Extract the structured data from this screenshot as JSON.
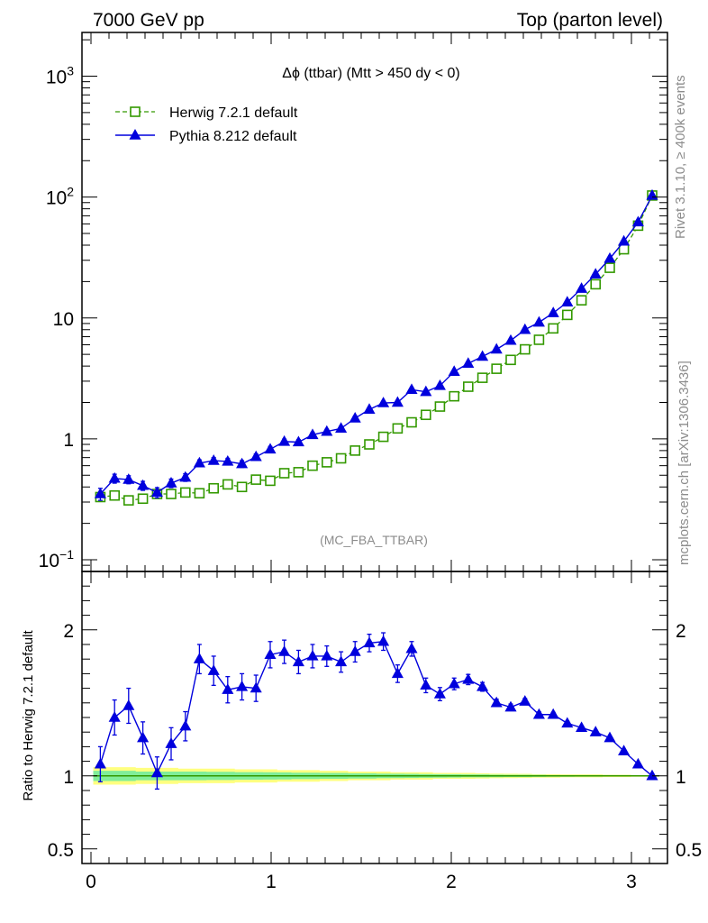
{
  "header": {
    "left": "7000 GeV pp",
    "right": "Top (parton level)"
  },
  "side_labels": {
    "rivet": "Rivet 3.1.10, ≥ 400k events",
    "mcplots": "mcplots.cern.ch [arXiv:1306.3436]"
  },
  "plot_title": "Δϕ (ttbar) (Mtt > 450 dy < 0)",
  "watermark": "(MC_FBA_TTBAR)",
  "ratio_ylabel": "Ratio to Herwig 7.2.1 default",
  "colors": {
    "herwig": "#339900",
    "pythia": "#0000dd",
    "band_outer": "#ffff80",
    "band_inner": "#80ee99"
  },
  "chart_data": [
    {
      "type": "line",
      "yscale": "log",
      "xlim": [
        -0.05,
        3.2
      ],
      "ylim": [
        0.08,
        2300
      ],
      "x": [
        0.052,
        0.131,
        0.209,
        0.288,
        0.367,
        0.445,
        0.524,
        0.602,
        0.681,
        0.759,
        0.838,
        0.916,
        0.995,
        1.073,
        1.152,
        1.23,
        1.309,
        1.388,
        1.466,
        1.545,
        1.623,
        1.702,
        1.78,
        1.859,
        1.937,
        2.016,
        2.094,
        2.173,
        2.251,
        2.33,
        2.409,
        2.487,
        2.566,
        2.644,
        2.723,
        2.801,
        2.88,
        2.958,
        3.037,
        3.115
      ],
      "series": [
        {
          "name": "Herwig 7.2.1 default",
          "marker": "open-square",
          "line": "dashed",
          "values": [
            0.33,
            0.34,
            0.31,
            0.32,
            0.35,
            0.35,
            0.36,
            0.355,
            0.39,
            0.42,
            0.4,
            0.46,
            0.45,
            0.52,
            0.53,
            0.6,
            0.64,
            0.69,
            0.8,
            0.9,
            1.04,
            1.22,
            1.37,
            1.58,
            1.85,
            2.25,
            2.7,
            3.2,
            3.8,
            4.5,
            5.5,
            6.6,
            8.2,
            10.6,
            14.0,
            19.0,
            26.0,
            37.0,
            58.0,
            103.0
          ]
        },
        {
          "name": "Pythia 8.212 default",
          "marker": "filled-triangle",
          "line": "solid",
          "values": [
            0.35,
            0.47,
            0.46,
            0.41,
            0.36,
            0.43,
            0.48,
            0.63,
            0.66,
            0.65,
            0.62,
            0.71,
            0.82,
            0.95,
            0.94,
            1.08,
            1.15,
            1.22,
            1.48,
            1.75,
            1.98,
            2.0,
            2.55,
            2.45,
            2.75,
            3.6,
            4.2,
            4.8,
            5.5,
            6.5,
            8.0,
            9.2,
            11.0,
            13.5,
            17.5,
            23.0,
            31.0,
            43.0,
            62.0,
            103.0
          ],
          "errors": [
            0.04,
            0.04,
            0.035,
            0.035,
            0.035,
            0.035,
            0.035,
            0.04,
            0.04,
            0.04,
            0.04,
            0.04,
            0.045,
            0.045,
            0.045,
            0.05,
            0.05,
            0.05,
            0.06,
            0.06,
            0.07,
            0.07,
            0.08,
            0.08,
            0.09,
            0.1,
            0.12,
            0.13,
            0.15,
            0.17,
            0.2,
            0.22,
            0.26,
            0.3,
            0.37,
            0.46,
            0.6,
            0.8,
            1.1,
            1.6
          ]
        }
      ],
      "yticks": [
        0.1,
        1,
        10,
        100,
        1000
      ],
      "yticklabels": [
        "10^-1",
        "1",
        "10",
        "10^2",
        "10^3"
      ]
    },
    {
      "type": "line",
      "ylabel": "Ratio to Herwig 7.2.1 default",
      "xlim": [
        -0.05,
        3.2
      ],
      "ylim": [
        0.4,
        2.4
      ],
      "reference": 1.0,
      "x": [
        0.052,
        0.131,
        0.209,
        0.288,
        0.367,
        0.445,
        0.524,
        0.602,
        0.681,
        0.759,
        0.838,
        0.916,
        0.995,
        1.073,
        1.152,
        1.23,
        1.309,
        1.388,
        1.466,
        1.545,
        1.623,
        1.702,
        1.78,
        1.859,
        1.937,
        2.016,
        2.094,
        2.173,
        2.251,
        2.33,
        2.409,
        2.487,
        2.566,
        2.644,
        2.723,
        2.801,
        2.88,
        2.958,
        3.037,
        3.115
      ],
      "series": [
        {
          "name": "Pythia 8.212 default",
          "values": [
            1.08,
            1.4,
            1.48,
            1.26,
            1.02,
            1.22,
            1.34,
            1.8,
            1.72,
            1.59,
            1.61,
            1.6,
            1.83,
            1.85,
            1.78,
            1.82,
            1.82,
            1.78,
            1.85,
            1.91,
            1.92,
            1.7,
            1.87,
            1.62,
            1.56,
            1.63,
            1.66,
            1.61,
            1.5,
            1.47,
            1.51,
            1.42,
            1.42,
            1.36,
            1.33,
            1.3,
            1.26,
            1.17,
            1.08,
            1.0
          ],
          "errors": [
            0.12,
            0.12,
            0.12,
            0.11,
            0.11,
            0.11,
            0.1,
            0.1,
            0.1,
            0.09,
            0.09,
            0.09,
            0.09,
            0.08,
            0.08,
            0.08,
            0.07,
            0.07,
            0.07,
            0.06,
            0.06,
            0.06,
            0.05,
            0.05,
            0.045,
            0.04,
            0.035,
            0.03,
            0.025,
            0.022,
            0.02,
            0.018,
            0.015,
            0.014,
            0.012,
            0.011,
            0.01,
            0.009,
            0.008,
            0.006
          ]
        }
      ],
      "band_outer": [
        0.06,
        0.06,
        0.06,
        0.055,
        0.055,
        0.055,
        0.05,
        0.05,
        0.05,
        0.05,
        0.045,
        0.045,
        0.045,
        0.04,
        0.04,
        0.04,
        0.035,
        0.035,
        0.03,
        0.03,
        0.03,
        0.025,
        0.025,
        0.025,
        0.02,
        0.02,
        0.02,
        0.018,
        0.016,
        0.015,
        0.014,
        0.012,
        0.012,
        0.01,
        0.01,
        0.01,
        0.008,
        0.008,
        0.006,
        0.005
      ],
      "band_inner": [
        0.035,
        0.035,
        0.035,
        0.03,
        0.03,
        0.03,
        0.03,
        0.03,
        0.028,
        0.028,
        0.026,
        0.026,
        0.025,
        0.024,
        0.022,
        0.022,
        0.02,
        0.02,
        0.018,
        0.018,
        0.016,
        0.015,
        0.014,
        0.013,
        0.012,
        0.011,
        0.01,
        0.01,
        0.009,
        0.008,
        0.008,
        0.007,
        0.006,
        0.006,
        0.005,
        0.005,
        0.004,
        0.004,
        0.003,
        0.003
      ],
      "yticks": [
        0.5,
        1,
        2
      ],
      "yticklabels": [
        "0.5",
        "1",
        "2"
      ],
      "xticks": [
        0,
        1,
        2,
        3
      ],
      "xticklabels": [
        "0",
        "1",
        "2",
        "3"
      ]
    }
  ]
}
